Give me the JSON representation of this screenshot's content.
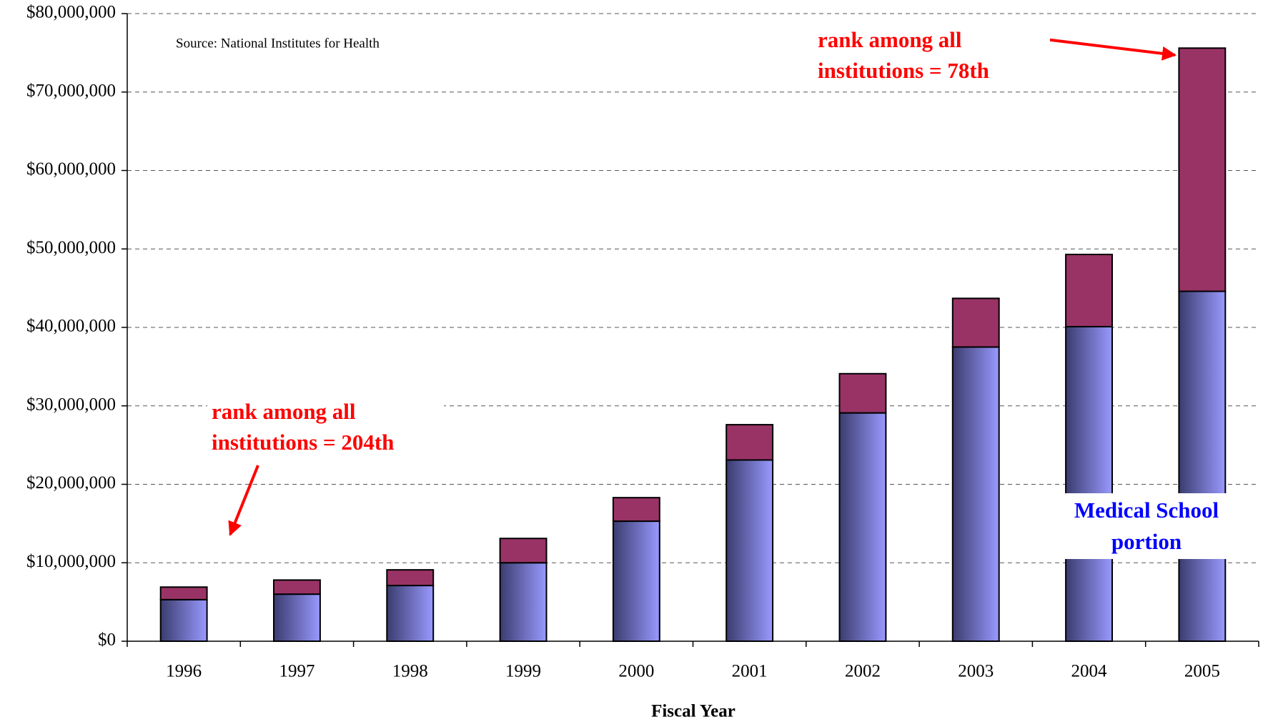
{
  "chart_data": {
    "type": "stacked_bar",
    "x_label": "Fiscal Year",
    "categories": [
      "1996",
      "1997",
      "1998",
      "1999",
      "2000",
      "2001",
      "2002",
      "2003",
      "2004",
      "2005"
    ],
    "series": [
      {
        "name": "Medical School portion",
        "color": "#9999ff",
        "values": [
          5300000,
          6000000,
          7100000,
          10000000,
          15300000,
          23100000,
          29100000,
          37500000,
          40100000,
          44600000
        ]
      },
      {
        "color": "#993366",
        "values": [
          1600000,
          1800000,
          2000000,
          3100000,
          3000000,
          4500000,
          5000000,
          6200000,
          9200000,
          31000000
        ]
      }
    ],
    "ylim": [
      0,
      80000000
    ],
    "yticks": [
      {
        "value": 0,
        "label": "$0"
      },
      {
        "value": 10000000,
        "label": "$10,000,000"
      },
      {
        "value": 20000000,
        "label": "$20,000,000"
      },
      {
        "value": 30000000,
        "label": "$30,000,000"
      },
      {
        "value": 40000000,
        "label": "$40,000,000"
      },
      {
        "value": 50000000,
        "label": "$50,000,000"
      },
      {
        "value": 60000000,
        "label": "$60,000,000"
      },
      {
        "value": 70000000,
        "label": "$70,000,000"
      },
      {
        "value": 80000000,
        "label": "$80,000,000"
      }
    ],
    "grid": true,
    "annotations": [
      "Source: National Institutes for Health",
      "rank among all institutions = 204th",
      "rank among all institutions = 78th"
    ]
  }
}
